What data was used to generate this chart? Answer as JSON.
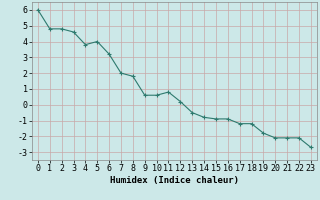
{
  "x": [
    0,
    1,
    2,
    3,
    4,
    5,
    6,
    7,
    8,
    9,
    10,
    11,
    12,
    13,
    14,
    15,
    16,
    17,
    18,
    19,
    20,
    21,
    22,
    23
  ],
  "y": [
    6.0,
    4.8,
    4.8,
    4.6,
    3.8,
    4.0,
    3.2,
    2.0,
    1.8,
    0.6,
    0.6,
    0.8,
    0.2,
    -0.5,
    -0.8,
    -0.9,
    -0.9,
    -1.2,
    -1.2,
    -1.8,
    -2.1,
    -2.1,
    -2.1,
    -2.7
  ],
  "line_color": "#2d7a6e",
  "marker": "+",
  "bg_color": "#cce8e8",
  "grid_color": "#c8a8a8",
  "xlabel": "Humidex (Indice chaleur)",
  "xlim": [
    -0.5,
    23.5
  ],
  "ylim": [
    -3.5,
    6.5
  ],
  "yticks": [
    -3,
    -2,
    -1,
    0,
    1,
    2,
    3,
    4,
    5,
    6
  ],
  "xticks": [
    0,
    1,
    2,
    3,
    4,
    5,
    6,
    7,
    8,
    9,
    10,
    11,
    12,
    13,
    14,
    15,
    16,
    17,
    18,
    19,
    20,
    21,
    22,
    23
  ],
  "axis_fontsize": 6.5,
  "tick_fontsize": 6.0,
  "linewidth": 0.8,
  "markersize": 3.5,
  "markeredgewidth": 0.8
}
